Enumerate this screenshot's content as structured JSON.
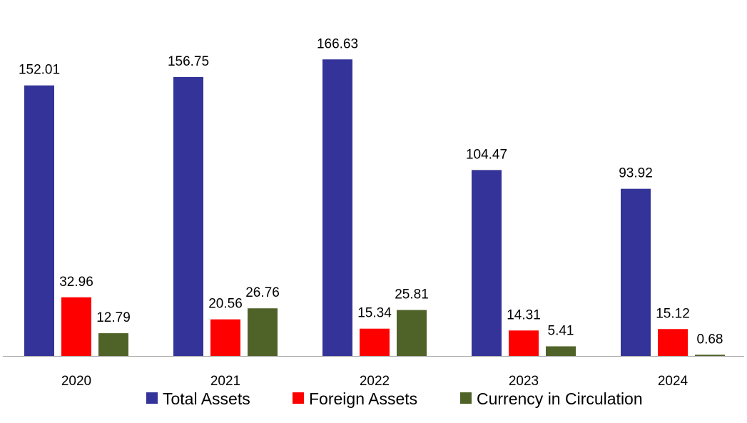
{
  "chart_data": {
    "type": "bar",
    "title": "",
    "xlabel": "",
    "ylabel": "",
    "categories": [
      "2020",
      "2021",
      "2022",
      "2023",
      "2024"
    ],
    "series": [
      {
        "name": "Total Assets",
        "color": "#333399",
        "values": [
          152.01,
          156.75,
          166.63,
          104.47,
          93.92
        ],
        "labels": [
          "152.01",
          "156.75",
          "166.63",
          "104.47",
          "93.92"
        ]
      },
      {
        "name": "Foreign Assets",
        "color": "#ff0000",
        "values": [
          32.96,
          20.56,
          15.34,
          14.31,
          15.12
        ],
        "labels": [
          "32.96",
          "20.56",
          "15.34",
          "14.31",
          "15.12"
        ]
      },
      {
        "name": "Currency in Circulation",
        "color": "#4f6228",
        "values": [
          12.79,
          26.76,
          25.81,
          5.41,
          0.68
        ],
        "labels": [
          "12.79",
          "26.76",
          "25.81",
          "5.41",
          "0.68"
        ]
      }
    ],
    "ylim": [
      0,
      180
    ],
    "grid": false,
    "legend": "bottom",
    "axis_color": "#a6a6a6"
  }
}
